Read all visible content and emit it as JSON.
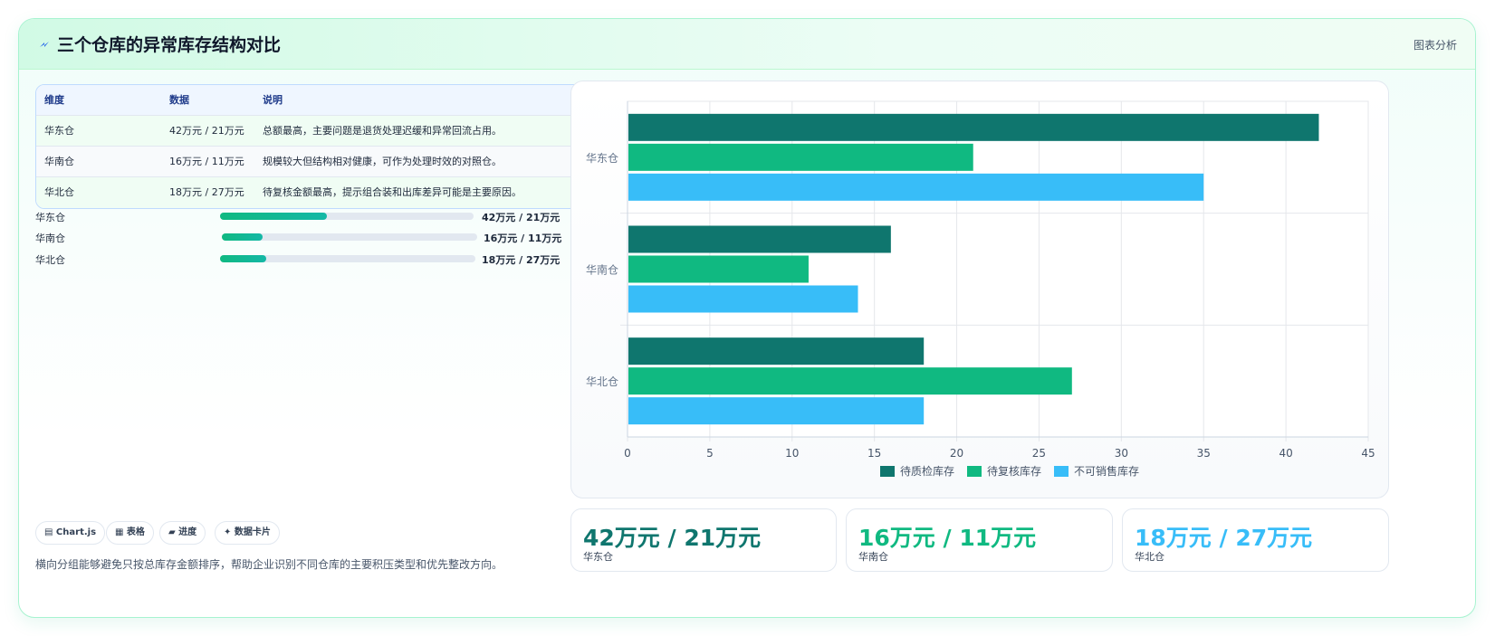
{
  "header": {
    "title": "三个仓库的异常库存结构对比",
    "tag": "图表分析"
  },
  "table": {
    "headers": [
      "维度",
      "数据",
      "说明"
    ],
    "rows": [
      [
        "华东仓",
        "42万元 / 21万元",
        "总额最高，主要问题是退货处理迟缓和异常回流占用。"
      ],
      [
        "华南仓",
        "16万元 / 11万元",
        "规模较大但结构相对健康，可作为处理时效的对照仓。"
      ],
      [
        "华北仓",
        "18万元 / 27万元",
        "待复核金额最高，提示组合装和出库差异可能是主要原因。"
      ]
    ]
  },
  "progress": [
    {
      "label": "华东仓",
      "value": "42万元 / 21万元",
      "fraction": 0.42
    },
    {
      "label": "华南仓",
      "value": "16万元 / 11万元",
      "fraction": 0.16
    },
    {
      "label": "华北仓",
      "value": "18万元 / 27万元",
      "fraction": 0.18
    }
  ],
  "tags": [
    "▤ Chart.js",
    "▦ 表格",
    "▰ 进度",
    "✦ 数据卡片"
  ],
  "note": "横向分组能够避免只按总库存金额排序，帮助企业识别不同仓库的主要积压类型和优先整改方向。",
  "stats": [
    {
      "value": "42万元 / 21万元",
      "label": "华东仓",
      "color": "#0f766e"
    },
    {
      "value": "16万元 / 11万元",
      "label": "华南仓",
      "color": "#10b981"
    },
    {
      "value": "18万元 / 27万元",
      "label": "华北仓",
      "color": "#38bdf8"
    }
  ],
  "chart_data": {
    "type": "bar",
    "orientation": "horizontal",
    "categories": [
      "华东仓",
      "华南仓",
      "华北仓"
    ],
    "series": [
      {
        "name": "待质检库存",
        "values": [
          42,
          16,
          18
        ],
        "color": "#0f766e"
      },
      {
        "name": "待复核库存",
        "values": [
          21,
          11,
          27
        ],
        "color": "#10b981"
      },
      {
        "name": "不可销售库存",
        "values": [
          35,
          14,
          18
        ],
        "color": "#38bdf8"
      }
    ],
    "xlim": [
      0,
      45
    ],
    "xticks": [
      0,
      5,
      10,
      15,
      20,
      25,
      30,
      35,
      40,
      45
    ],
    "grid": true,
    "legend_position": "bottom"
  }
}
